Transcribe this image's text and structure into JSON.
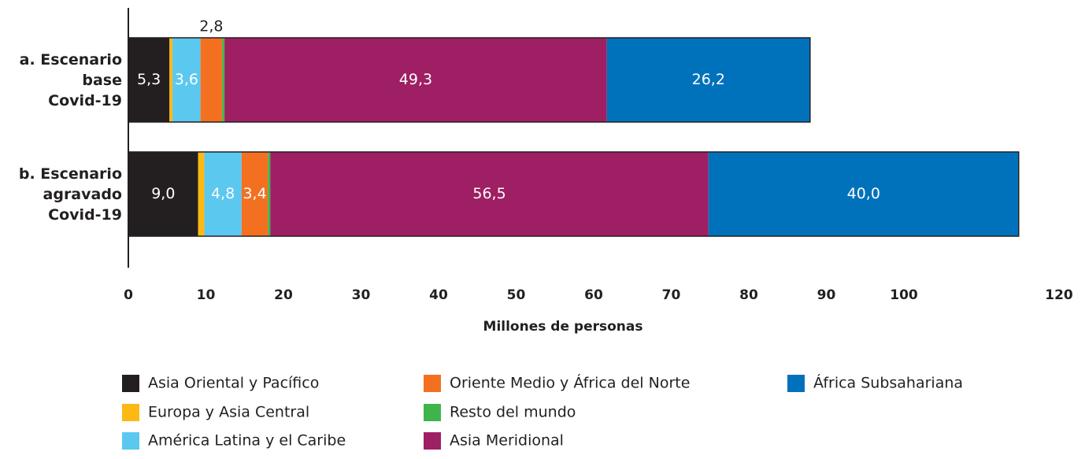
{
  "chart_data": {
    "type": "stacked-bar-horizontal",
    "categories": [
      "a. Escenario\nbase\nCovid-19",
      "b. Escenario\nagravado\nCovid-19"
    ],
    "x_label": "Millones de personas",
    "xlim": [
      0,
      120
    ],
    "xticks": [
      0,
      10,
      20,
      30,
      40,
      50,
      60,
      70,
      80,
      90,
      100,
      120
    ],
    "series": [
      {
        "name": "Asia Oriental y Pacífico",
        "color": "#231f20",
        "values": [
          5.3,
          9.0
        ],
        "value_labels": [
          "5,3",
          "9,0"
        ]
      },
      {
        "name": "Europa y Asia Central",
        "color": "#fdb913",
        "values": [
          0.4,
          0.8
        ],
        "value_labels": [
          null,
          null
        ]
      },
      {
        "name": "América Latina y el Caribe",
        "color": "#5bc8f0",
        "values": [
          3.6,
          4.8
        ],
        "value_labels": [
          "3,6",
          "4,8"
        ]
      },
      {
        "name": "Oriente Medio y África del Norte",
        "color": "#f47021",
        "values": [
          2.8,
          3.4
        ],
        "value_labels": [
          "2,8",
          "3,4"
        ]
      },
      {
        "name": "Resto del mundo",
        "color": "#3db54a",
        "values": [
          0.3,
          0.3
        ],
        "value_labels": [
          null,
          null
        ]
      },
      {
        "name": "Asia Meridional",
        "color": "#9e1f63",
        "values": [
          49.3,
          56.5
        ],
        "value_labels": [
          "49,3",
          "56,5"
        ]
      },
      {
        "name": "África Subsahariana",
        "color": "#0072bc",
        "values": [
          26.2,
          40.0
        ],
        "value_labels": [
          "26,2",
          "40,0"
        ]
      }
    ]
  }
}
